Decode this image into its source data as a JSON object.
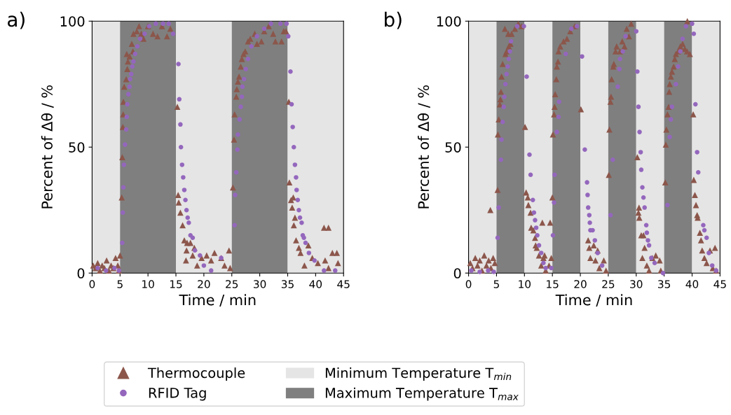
{
  "chart_data": [
    {
      "type": "scatter",
      "title": "a)",
      "xlabel": "Time / min",
      "ylabel": "Percent of Δθ / %",
      "xlim": [
        0,
        45
      ],
      "ylim": [
        0,
        100
      ],
      "xticks": [
        0,
        5,
        10,
        15,
        20,
        25,
        30,
        35,
        40,
        45
      ],
      "yticks": [
        0,
        50,
        100
      ],
      "grid": false,
      "legend": "bottom",
      "bands": [
        {
          "axis": "x",
          "from": 0,
          "to": 5,
          "color": "#e5e5e5",
          "label": "Minimum Temperature T$_{min}$"
        },
        {
          "axis": "x",
          "from": 5,
          "to": 15,
          "color": "#7f7f7f",
          "label": "Maximum Temperature T$_{max}$"
        },
        {
          "axis": "x",
          "from": 15,
          "to": 25,
          "color": "#e5e5e5"
        },
        {
          "axis": "x",
          "from": 25,
          "to": 35,
          "color": "#7f7f7f"
        },
        {
          "axis": "x",
          "from": 35,
          "to": 45,
          "color": "#e5e5e5"
        }
      ],
      "series": [
        {
          "name": "Thermocouple",
          "color": "#8c564b",
          "marker": "triangle",
          "x": [
            0.2,
            0.6,
            1,
            1.4,
            1.8,
            2.2,
            2.6,
            3,
            3.4,
            3.8,
            4.2,
            4.6,
            4.8,
            5,
            5.3,
            5.4,
            5.5,
            5.56,
            5.6,
            5.75,
            6.1,
            6.3,
            6.4,
            6.2,
            6.7,
            7.1,
            7.3,
            7.4,
            8,
            8.4,
            8.8,
            9.2,
            10,
            10.9,
            11.7,
            12.5,
            13.4,
            14,
            15.25,
            15.4,
            15.5,
            15.8,
            16.2,
            16.5,
            17,
            16.9,
            17.6,
            18.3,
            18,
            16.8,
            18.8,
            19.6,
            20.5,
            21.3,
            21.9,
            23.1,
            24.5,
            23.7,
            24.7,
            25.2,
            25.4,
            25.5,
            25.8,
            25.9,
            26.1,
            26.3,
            26.6,
            26.8,
            27.1,
            27.4,
            27.9,
            28.3,
            29.1,
            29.5,
            30.3,
            30.8,
            31.6,
            32.4,
            32.8,
            33.9,
            34.3,
            34.7,
            35.2,
            35.3,
            35.6,
            36,
            35.8,
            36.3,
            36.1,
            36.5,
            37,
            37.3,
            38,
            38.7,
            39.4,
            40.4,
            41.5,
            42.3,
            41.7,
            42.3,
            43,
            43.8,
            44
          ],
          "values": [
            3,
            2,
            4,
            1,
            3,
            2,
            5,
            1,
            3,
            2,
            6,
            3,
            1,
            7,
            30,
            46,
            58,
            63,
            68,
            74,
            77,
            81,
            84,
            87,
            86,
            91,
            88,
            95,
            96,
            98,
            95,
            93,
            98,
            95,
            94,
            98,
            94,
            97,
            66,
            31,
            28,
            24,
            19,
            13,
            12,
            9,
            12,
            10,
            7,
            5,
            3,
            6,
            7,
            5,
            8,
            6,
            9,
            3,
            2,
            34,
            53,
            63,
            70,
            73,
            76,
            78,
            82,
            85,
            87,
            88,
            92,
            93,
            95,
            91,
            92,
            96,
            98,
            95,
            92,
            92,
            96,
            96,
            68,
            36,
            29,
            30,
            26,
            22,
            19,
            13,
            10,
            8,
            3,
            11,
            6,
            4,
            18,
            18,
            5,
            2,
            8,
            8,
            4
          ]
        },
        {
          "name": "RFID Tag",
          "color": "#9467bd",
          "marker": "circle",
          "x": [
            1,
            2.5,
            4,
            4.8,
            5.4,
            5.5,
            5.6,
            5.7,
            5.9,
            6.1,
            6.2,
            6.3,
            6.5,
            6.7,
            6.8,
            7,
            7.2,
            7.4,
            7.7,
            8.1,
            8.6,
            9.4,
            10.2,
            11.4,
            12.7,
            13.7,
            14.5,
            15.45,
            15.6,
            15.8,
            15.9,
            16.1,
            16.3,
            16.5,
            16.7,
            16.9,
            17.1,
            17.3,
            17.6,
            18,
            18.4,
            19.3,
            20,
            21.3,
            23.1,
            25.5,
            25.6,
            25.8,
            26,
            26.1,
            26.4,
            26.6,
            26.8,
            26.9,
            27.2,
            27.5,
            27.9,
            28.5,
            29.5,
            30.8,
            32,
            33.7,
            34.8,
            35.1,
            35.5,
            35.7,
            35.9,
            36.1,
            36.3,
            36.5,
            36.6,
            36.8,
            37,
            37.2,
            37.5,
            37.7,
            37.9,
            38.2,
            38.8,
            39.8,
            41.5,
            43.5
          ],
          "values": [
            2,
            1,
            2,
            1,
            12,
            24,
            34,
            43,
            51,
            57,
            62,
            67,
            71,
            74,
            77,
            79,
            82,
            84,
            87,
            90,
            93,
            95,
            98,
            99,
            99,
            99,
            95,
            83,
            69,
            59,
            50,
            43,
            38,
            33,
            29,
            25,
            22,
            20,
            15,
            14,
            9,
            7,
            3,
            1,
            6,
            19,
            31,
            40,
            49,
            55,
            61,
            66,
            70,
            74,
            77,
            81,
            85,
            90,
            94,
            97,
            99,
            99,
            99,
            94,
            80,
            67,
            58,
            50,
            43,
            38,
            33,
            29,
            25,
            22,
            20,
            15,
            14,
            12,
            8,
            5,
            1,
            1
          ]
        }
      ]
    },
    {
      "type": "scatter",
      "title": "b)",
      "xlabel": "Time / min",
      "ylabel": "Percent of Δθ / %",
      "xlim": [
        0,
        45
      ],
      "ylim": [
        0,
        100
      ],
      "xticks": [
        0,
        5,
        10,
        15,
        20,
        25,
        30,
        35,
        40,
        45
      ],
      "yticks": [
        0,
        50,
        100
      ],
      "grid": false,
      "bands": [
        {
          "axis": "x",
          "from": 0,
          "to": 5,
          "color": "#e5e5e5"
        },
        {
          "axis": "x",
          "from": 5,
          "to": 10,
          "color": "#7f7f7f"
        },
        {
          "axis": "x",
          "from": 10,
          "to": 15,
          "color": "#e5e5e5"
        },
        {
          "axis": "x",
          "from": 15,
          "to": 20,
          "color": "#7f7f7f"
        },
        {
          "axis": "x",
          "from": 20,
          "to": 25,
          "color": "#e5e5e5"
        },
        {
          "axis": "x",
          "from": 25,
          "to": 30,
          "color": "#7f7f7f"
        },
        {
          "axis": "x",
          "from": 30,
          "to": 35,
          "color": "#e5e5e5"
        },
        {
          "axis": "x",
          "from": 35,
          "to": 40,
          "color": "#7f7f7f"
        },
        {
          "axis": "x",
          "from": 40,
          "to": 45,
          "color": "#e5e5e5"
        }
      ],
      "series": [
        {
          "color": "#8c564b",
          "marker": "triangle",
          "x": [
            0.3,
            0.7,
            1.2,
            1.6,
            2,
            2.4,
            2.8,
            3.2,
            3.6,
            4,
            4.4,
            4.7,
            3.9,
            5.2,
            5.25,
            5.4,
            5.6,
            5.7,
            5.8,
            5.9,
            6.1,
            6.6,
            6.8,
            7.2,
            7.5,
            6.5,
            7.1,
            7.7,
            8.3,
            8.9,
            9.5,
            10.1,
            10.3,
            10.6,
            10.7,
            11.1,
            11.2,
            11.6,
            11.9,
            12,
            12.2,
            12.6,
            13.2,
            13.4,
            13.6,
            13,
            13.8,
            14.6,
            14.8,
            14.4,
            15,
            15.1,
            15.3,
            15.4,
            15.5,
            15.7,
            15.8,
            16,
            16.1,
            16.4,
            17,
            17.6,
            18.2,
            19,
            20.1,
            21.4,
            21.6,
            21.8,
            22.4,
            23.1,
            22.7,
            23.4,
            24.2,
            24.6,
            25.1,
            25.2,
            25.4,
            25.5,
            25.6,
            25.9,
            26,
            26.3,
            26.5,
            27.1,
            27.5,
            27.9,
            28.3,
            28.7,
            29.1,
            30.2,
            30.4,
            30.5,
            30.55,
            30.9,
            31.3,
            31.5,
            31.1,
            31.9,
            32.3,
            32.9,
            33.5,
            34.2,
            34.4,
            35.2,
            35.3,
            35.4,
            35.6,
            35.8,
            35.9,
            36,
            36.2,
            36.4,
            36.7,
            36.9,
            37.1,
            37.5,
            37.9,
            38.3,
            38.7,
            39.1,
            39.6,
            39.15,
            40.2,
            40.3,
            40.5,
            40.7,
            40.9,
            41,
            41.4,
            41.6,
            41.8,
            42.2,
            42.6,
            43.2,
            44.1,
            43.7,
            44.3
          ],
          "values": [
            4,
            2,
            6,
            3,
            5,
            1,
            7,
            3,
            5,
            2,
            6,
            4,
            25,
            33,
            55,
            61,
            67,
            69,
            72,
            78,
            83,
            87,
            88,
            90,
            91,
            97,
            95,
            95,
            97,
            99,
            98,
            58,
            32,
            30,
            27,
            24,
            18,
            17,
            14,
            11,
            10,
            7,
            20,
            6,
            7,
            3,
            1,
            20,
            6,
            3,
            30,
            55,
            63,
            66,
            71,
            77,
            82,
            84,
            88,
            90,
            92,
            93,
            96,
            98,
            65,
            13,
            10,
            6,
            11,
            9,
            5,
            2,
            5,
            1,
            39,
            57,
            68,
            70,
            77,
            82,
            83,
            88,
            90,
            88,
            92,
            90,
            97,
            94,
            99,
            46,
            24,
            26,
            22,
            15,
            15,
            10,
            6,
            3,
            1,
            6,
            7,
            5,
            1,
            36,
            51,
            57,
            63,
            66,
            72,
            75,
            78,
            80,
            82,
            85,
            87,
            88,
            90,
            91,
            89,
            88,
            87,
            100,
            63,
            37,
            31,
            27,
            23,
            22,
            16,
            13,
            9,
            6,
            4,
            9,
            10,
            2,
            1
          ]
        },
        {
          "color": "#9467bd",
          "marker": "circle",
          "x": [
            0.5,
            2,
            3.5,
            4.5,
            5.2,
            5.4,
            5.8,
            5.9,
            6.1,
            6.3,
            6.4,
            6.6,
            6.8,
            7,
            7.2,
            7.4,
            7.6,
            8.7,
            9.9,
            10.4,
            10.9,
            11.1,
            11.5,
            11.7,
            11.9,
            12.1,
            12.3,
            12.6,
            13,
            13.4,
            13.8,
            14.8,
            15.1,
            15.3,
            15.4,
            15.8,
            16.1,
            16.2,
            17.4,
            18.4,
            19.4,
            20.3,
            20.8,
            21.2,
            21.3,
            21.4,
            21.6,
            21.7,
            21.8,
            22.2,
            22.6,
            23.1,
            23.9,
            25.4,
            25.8,
            26.7,
            27,
            27.1,
            27.6,
            28.1,
            30,
            30.2,
            30.4,
            30.6,
            30.8,
            30.9,
            31.1,
            31.3,
            31.5,
            31.8,
            31.9,
            32.1,
            32.3,
            32.7,
            33.3,
            34.8,
            35.6,
            36,
            36.2,
            36.4,
            37.1,
            37.5,
            37.9,
            38.3,
            38.9,
            40,
            40.3,
            40.6,
            40.9,
            41.1,
            42,
            42.2,
            42.6,
            43,
            43.6,
            44.3
          ],
          "values": [
            1,
            0.5,
            1,
            0.5,
            14,
            26,
            45,
            53,
            60,
            66,
            70,
            75,
            79,
            82,
            85,
            88,
            92,
            98,
            98,
            78,
            47,
            39,
            29,
            24,
            21,
            18,
            15,
            11,
            8,
            4,
            2,
            2,
            15,
            28,
            39,
            56,
            62,
            68,
            87,
            97,
            98,
            86,
            49,
            36,
            31,
            26,
            23,
            20,
            17,
            17,
            13,
            8,
            3,
            23,
            45,
            74,
            81,
            85,
            88,
            94,
            96,
            80,
            66,
            56,
            48,
            41,
            34,
            30,
            26,
            19,
            16,
            13,
            11,
            6,
            4,
            0,
            27,
            54,
            61,
            66,
            75,
            82,
            88,
            93,
            98,
            99,
            95,
            67,
            48,
            40,
            19,
            17,
            14,
            8,
            3,
            1
          ]
        }
      ]
    }
  ]
}
